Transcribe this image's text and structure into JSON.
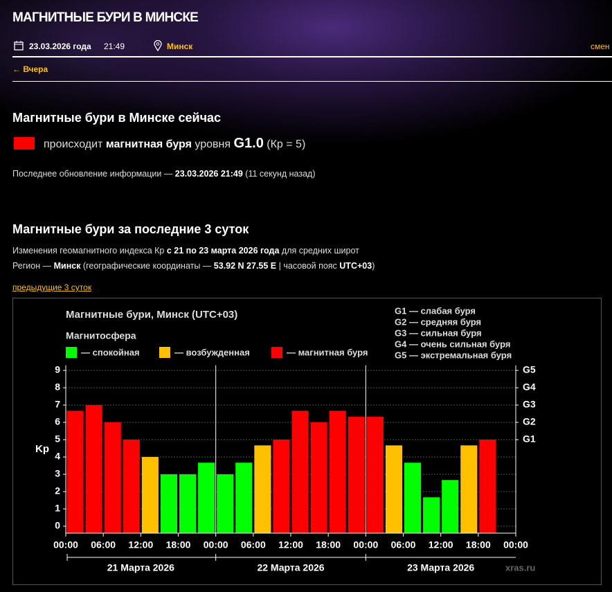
{
  "header": {
    "title": "МАГНИТНЫЕ БУРИ В МИНСКЕ",
    "date": "23.03.2026 года",
    "time": "21:49",
    "city": "Минск",
    "change": "смен"
  },
  "nav": {
    "back": "← Вчера"
  },
  "now": {
    "heading": "Магнитные бури в Минске сейчас",
    "before": "происходит ",
    "storm": "магнитная буря",
    "mid": " уровня ",
    "level": "G1.0",
    "kp": " (Кр = 5)",
    "update_prefix": "Последнее обновление информации — ",
    "update_time": "23.03.2026 21:49",
    "update_suffix": " (11 секунд назад)"
  },
  "history": {
    "heading": "Магнитные бури за последние 3 суток",
    "line1": [
      "Изменения геомагнитного индекса Кр ",
      "с 21 по 23 марта 2026 года",
      " для средних широт"
    ],
    "line2": [
      "Регион — ",
      "Минск",
      " (географические координаты — ",
      "53.92 N 27.55 E",
      " | часовой пояс ",
      "UTC+03",
      ")"
    ],
    "prev_link": "предыдущие 3 суток"
  },
  "chart_data": {
    "type": "bar",
    "title": "Магнитные бури, Минск (UTC+03)",
    "legend_title": "Магнитосфера",
    "legend": [
      {
        "label": "— спокойная",
        "color": "#00ff00"
      },
      {
        "label": "— возбужденная",
        "color": "#ffc000"
      },
      {
        "label": "— магнитная буря",
        "color": "#ff0000"
      }
    ],
    "g_legend": [
      "G1 — слабая буря",
      "G2 — средняя буря",
      "G3 — сильная буря",
      "G4 — очень сильная буря",
      "G5 — экстремальная буря"
    ],
    "y_label": "Kp",
    "x": [
      0,
      3,
      6,
      9,
      12,
      15,
      18,
      21,
      24,
      27,
      30,
      33,
      36,
      39,
      42,
      45,
      48,
      51,
      54,
      57,
      60,
      63,
      66,
      69
    ],
    "values": [
      6.67,
      7,
      6,
      5,
      4,
      3,
      3,
      3.67,
      3,
      3.67,
      4.67,
      5,
      6.67,
      6,
      6.67,
      6.33,
      6.33,
      4.67,
      3.67,
      1.67,
      2.67,
      4.67,
      5,
      null
    ],
    "colors": [
      "#ff0000",
      "#ff0000",
      "#ff0000",
      "#ff0000",
      "#ffc000",
      "#00ff00",
      "#00ff00",
      "#00ff00",
      "#00ff00",
      "#00ff00",
      "#ffc000",
      "#ff0000",
      "#ff0000",
      "#ff0000",
      "#ff0000",
      "#ff0000",
      "#ff0000",
      "#ffc000",
      "#00ff00",
      "#00ff00",
      "#00ff00",
      "#ffc000",
      "#ff0000",
      null
    ],
    "bar_width": 3,
    "xlim": [
      0,
      72
    ],
    "xticks": [
      {
        "value": 0,
        "label": "00:00"
      },
      {
        "value": 6,
        "label": "06:00"
      },
      {
        "value": 12,
        "label": "12:00"
      },
      {
        "value": 18,
        "label": "18:00"
      },
      {
        "value": 24,
        "label": "00:00"
      },
      {
        "value": 30,
        "label": "06:00"
      },
      {
        "value": 36,
        "label": "12:00"
      },
      {
        "value": 42,
        "label": "18:00"
      },
      {
        "value": 48,
        "label": "00:00"
      },
      {
        "value": 54,
        "label": "06:00"
      },
      {
        "value": 60,
        "label": "12:00"
      },
      {
        "value": 66,
        "label": "18:00"
      },
      {
        "value": 72,
        "label": "00:00"
      }
    ],
    "day_labels": [
      "21 Марта 2026",
      "22 Марта 2026",
      "23 Марта 2026"
    ],
    "ylim": [
      -0.4,
      9.3
    ],
    "yticks": [
      0,
      1,
      2,
      3,
      4,
      5,
      6,
      7,
      8,
      9
    ],
    "y2lim": [
      -0.4,
      9.3
    ],
    "y2ticks": [
      {
        "value": 5,
        "label": "G1"
      },
      {
        "value": 6,
        "label": "G2"
      },
      {
        "value": 7,
        "label": "G3"
      },
      {
        "value": 8,
        "label": "G4"
      },
      {
        "value": 9,
        "label": "G5"
      }
    ],
    "grid": true,
    "watermark": "xras.ru"
  }
}
